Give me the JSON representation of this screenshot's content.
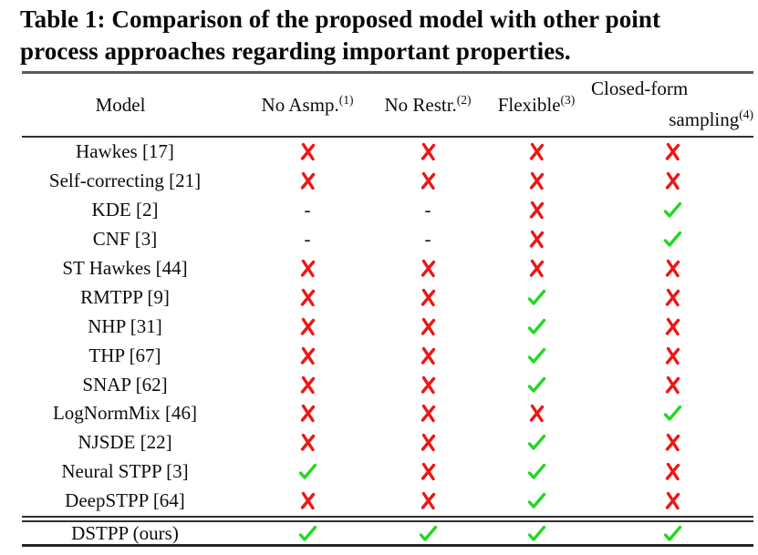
{
  "title": {
    "lines": [
      "Table 1: Comparison of the proposed model with other point",
      "process approaches regarding important properties."
    ]
  },
  "table": {
    "columns": [
      {
        "label": "Model",
        "sup": ""
      },
      {
        "label": "No Asmp.",
        "sup": "(1)"
      },
      {
        "label": "No Restr.",
        "sup": "(2)"
      },
      {
        "label": "Flexible",
        "sup": "(3)"
      },
      {
        "label": "Closed-form",
        "label2": "sampling",
        "sup": "(4)"
      }
    ],
    "dash_char": "-",
    "rows": [
      {
        "model": "Hawkes [17]",
        "marks": [
          "cross",
          "cross",
          "cross",
          "cross"
        ]
      },
      {
        "model": "Self-correcting [21]",
        "marks": [
          "cross",
          "cross",
          "cross",
          "cross"
        ]
      },
      {
        "model": "KDE [2]",
        "marks": [
          "dash",
          "dash",
          "cross",
          "check"
        ]
      },
      {
        "model": "CNF [3]",
        "marks": [
          "dash",
          "dash",
          "cross",
          "check"
        ]
      },
      {
        "model": "ST Hawkes [44]",
        "marks": [
          "cross",
          "cross",
          "cross",
          "cross"
        ]
      },
      {
        "model": "RMTPP [9]",
        "marks": [
          "cross",
          "cross",
          "check",
          "cross"
        ]
      },
      {
        "model": "NHP [31]",
        "marks": [
          "cross",
          "cross",
          "check",
          "cross"
        ]
      },
      {
        "model": "THP [67]",
        "marks": [
          "cross",
          "cross",
          "check",
          "cross"
        ]
      },
      {
        "model": "SNAP [62]",
        "marks": [
          "cross",
          "cross",
          "check",
          "cross"
        ]
      },
      {
        "model": "LogNormMix [46]",
        "marks": [
          "cross",
          "cross",
          "cross",
          "check"
        ]
      },
      {
        "model": "NJSDE [22]",
        "marks": [
          "cross",
          "cross",
          "check",
          "cross"
        ]
      },
      {
        "model": "Neural STPP [3]",
        "marks": [
          "check",
          "cross",
          "check",
          "cross"
        ]
      },
      {
        "model": "DeepSTPP [64]",
        "marks": [
          "cross",
          "cross",
          "check",
          "cross"
        ]
      }
    ],
    "highlight_row": {
      "model": "DSTPP (ours)",
      "marks": [
        "check",
        "check",
        "check",
        "check"
      ]
    },
    "colors": {
      "check_green": "#22d822",
      "cross_red": "#ee1616",
      "text": "#0d0d0d",
      "rule_dark": "#303030",
      "rule_gray": "#5a5a5a"
    }
  }
}
